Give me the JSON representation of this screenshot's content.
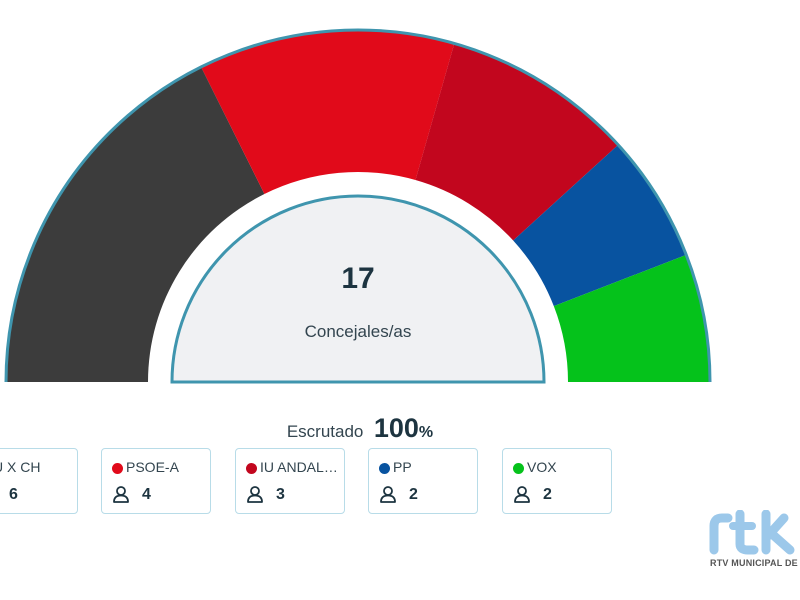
{
  "chart_data": {
    "type": "hemicycle",
    "total_seats": 17,
    "center_label": "Concejales/as",
    "series": [
      {
        "name": "U X CH",
        "seats": 6,
        "color": "#3c3c3c"
      },
      {
        "name": "PSOE-A",
        "seats": 4,
        "color": "#e10a1a"
      },
      {
        "name": "IU ANDALUC...",
        "seats": 3,
        "color": "#c2061e"
      },
      {
        "name": "PP",
        "seats": 2,
        "color": "#0853a0"
      },
      {
        "name": "VOX",
        "seats": 2,
        "color": "#05c21b"
      }
    ]
  },
  "scrutiny": {
    "label": "Escrutado",
    "value": "100",
    "unit": "%"
  },
  "logo": {
    "text": "rtv",
    "caption": "RTV MUNICIPAL DE CH"
  },
  "colors": {
    "border": "#3f95ae",
    "inner_fill": "#f0f1f3",
    "card_border": "#b8dce8"
  }
}
